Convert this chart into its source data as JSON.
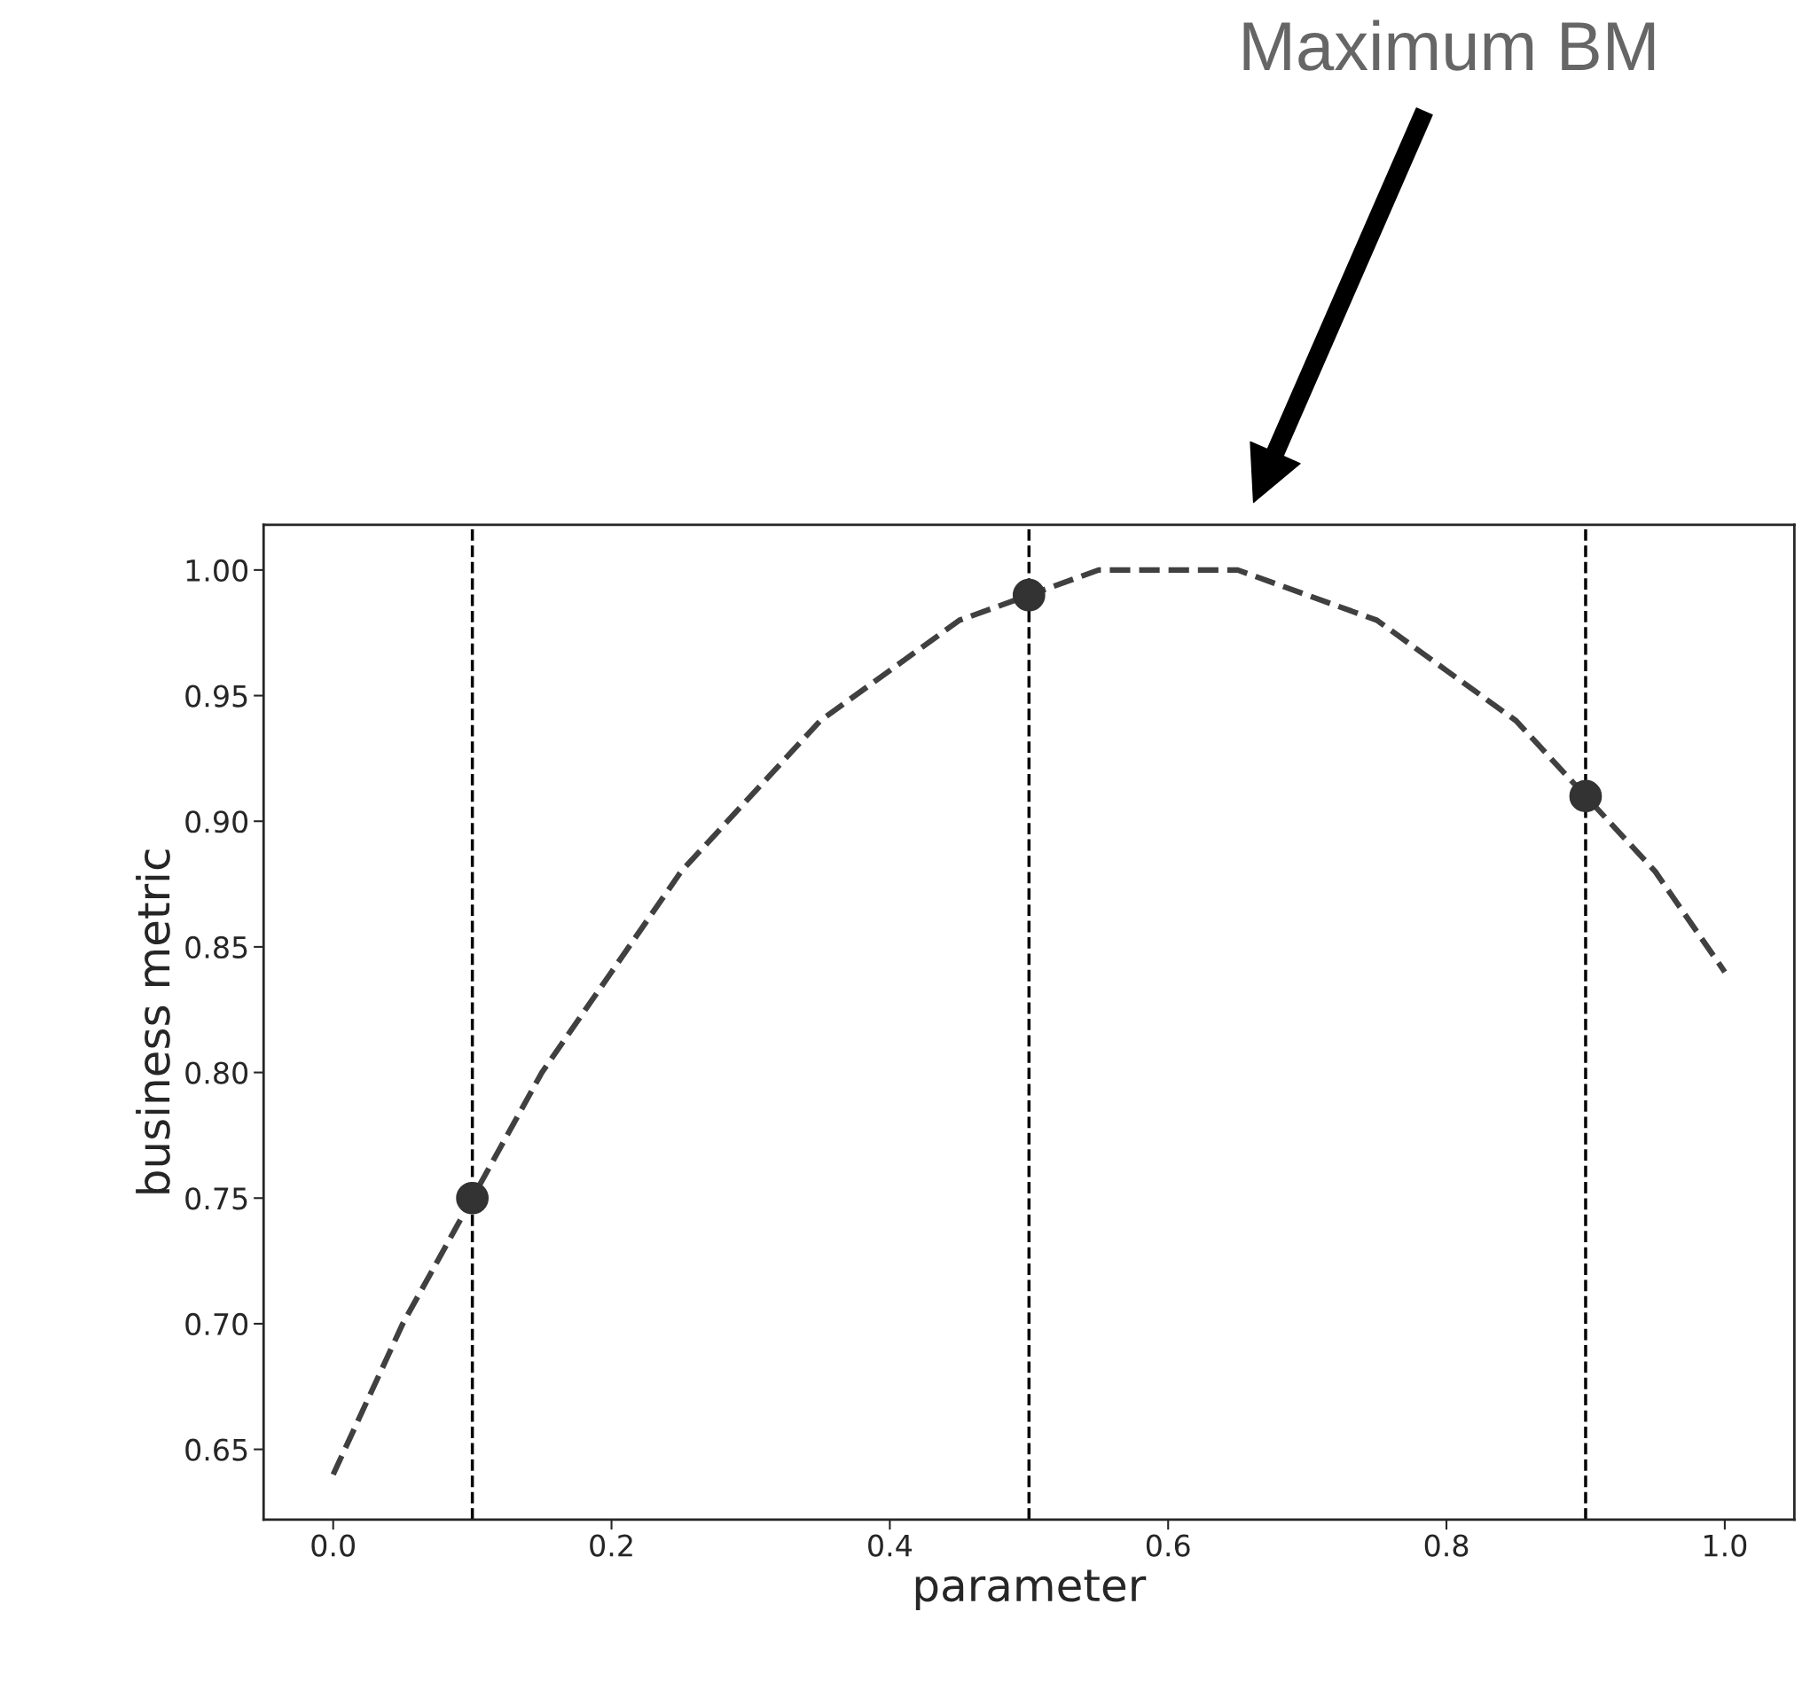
{
  "chart_data": {
    "type": "line",
    "xlabel": "parameter",
    "ylabel": "business metric",
    "annotations": [
      "Maximum BM"
    ],
    "series": [
      {
        "color": "#404040",
        "line_style": "dashed",
        "marker": "none",
        "x": [
          0.0,
          0.05,
          0.1,
          0.15,
          0.2,
          0.25,
          0.3,
          0.35,
          0.4,
          0.45,
          0.5,
          0.55,
          0.6,
          0.65,
          0.7,
          0.75,
          0.8,
          0.85,
          0.9,
          0.95,
          1.0
        ],
        "values": [
          0.64,
          0.7,
          0.75,
          0.8,
          0.84,
          0.88,
          0.91,
          0.94,
          0.96,
          0.98,
          0.99,
          1.0,
          1.0,
          1.0,
          0.99,
          0.98,
          0.96,
          0.94,
          0.91,
          0.88,
          0.84
        ]
      },
      {
        "type": "scatter",
        "color": "#333333",
        "marker": "circle",
        "x": [
          0.1,
          0.5,
          0.9
        ],
        "values": [
          0.75,
          0.99,
          0.91
        ]
      }
    ],
    "ref_lines": [
      {
        "axis": "x",
        "value": 0.1,
        "color": "#000000",
        "line_style": "dashed"
      },
      {
        "axis": "x",
        "value": 0.5,
        "color": "#000000",
        "line_style": "dashed"
      },
      {
        "axis": "x",
        "value": 0.9,
        "color": "#000000",
        "line_style": "dashed"
      }
    ],
    "xlim": [
      -0.05,
      1.05
    ],
    "xticks": [
      {
        "value": 0.0,
        "label": "0.0"
      },
      0.2,
      0.4,
      0.6,
      0.8,
      {
        "value": 1.0,
        "label": "1.0"
      }
    ],
    "ylim": [
      0.622,
      1.018
    ],
    "yticks": [
      {
        "value": 0.65,
        "label": "0.65"
      },
      {
        "value": 0.7,
        "label": "0.70"
      },
      {
        "value": 0.75,
        "label": "0.75"
      },
      {
        "value": 0.8,
        "label": "0.80"
      },
      {
        "value": 0.85,
        "label": "0.85"
      },
      {
        "value": 0.9,
        "label": "0.90"
      },
      {
        "value": 0.95,
        "label": "0.95"
      },
      {
        "value": 1.0,
        "label": "1.00"
      }
    ],
    "grid": false,
    "legend": false
  }
}
